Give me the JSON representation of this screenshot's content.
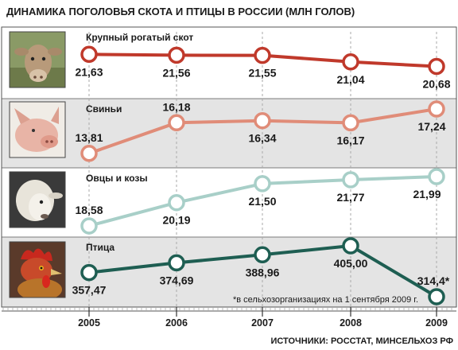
{
  "title": "ДИНАМИКА ПОГОЛОВЬЯ СКОТА И ПТИЦЫ В РОССИИ (МЛН ГОЛОВ)",
  "source": "ИСТОЧНИКИ: РОССТАТ, МИНСЕЛЬХОЗ РФ",
  "footnote": "*в сельхозорганизациях на 1 сентября 2009 г.",
  "chart_data": {
    "type": "line",
    "title": "ДИНАМИКА ПОГОЛОВЬЯ СКОТА И ПТИЦЫ В РОССИИ (МЛН ГОЛОВ)",
    "x": [
      "2005",
      "2006",
      "2007",
      "2008",
      "2009"
    ],
    "series": [
      {
        "name": "Крупный рогатый скот",
        "values": [
          21.63,
          21.56,
          21.55,
          21.04,
          20.68
        ],
        "labels": [
          "21,63",
          "21,56",
          "21,55",
          "21,04",
          "20,68"
        ],
        "color": "#c0392b",
        "icon": "cow-image",
        "band": "white"
      },
      {
        "name": "Свиньи",
        "values": [
          13.81,
          16.18,
          16.34,
          16.17,
          17.24
        ],
        "labels": [
          "13,81",
          "16,18",
          "16,34",
          "16,17",
          "17,24"
        ],
        "color": "#e08c78",
        "icon": "pig-image",
        "band": "gray"
      },
      {
        "name": "Овцы и козы",
        "values": [
          18.58,
          20.19,
          21.5,
          21.77,
          21.99
        ],
        "labels": [
          "18,58",
          "20,19",
          "21,50",
          "21,77",
          "21,99"
        ],
        "color": "#a8cfc8",
        "icon": "sheep-image",
        "band": "white"
      },
      {
        "name": "Птица",
        "values": [
          357.47,
          374.69,
          388.96,
          405.0,
          314.4
        ],
        "labels": [
          "357,47",
          "374,69",
          "388,96",
          "405,00",
          "314,4*"
        ],
        "color": "#1e5e52",
        "icon": "rooster-image",
        "band": "gray"
      }
    ],
    "grid": "vertical-dashed",
    "legend": "none"
  },
  "colors": {
    "band_gray": "#e4e4e4",
    "frame": "#555555",
    "grid": "#aaaaaa"
  }
}
